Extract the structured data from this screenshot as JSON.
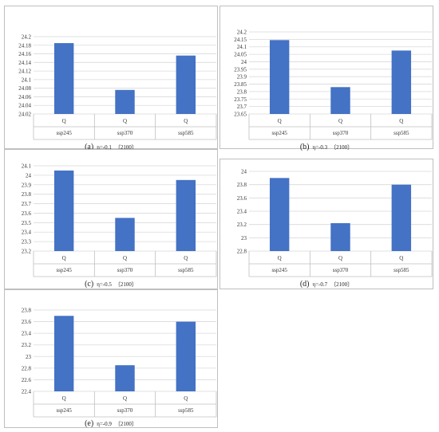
{
  "colors": {
    "bar": "#4472C4",
    "grid": "#d9d9d9",
    "axis_text": "#333333",
    "divider": "#bfbfbf"
  },
  "panels": [
    {
      "label": "(a)",
      "eta": "η=-0.1",
      "year": "〔2100〕"
    },
    {
      "label": "(b)",
      "eta": "η=-0.3",
      "year": "〔2100〕"
    },
    {
      "label": "(c)",
      "eta": "η=-0.5",
      "year": "〔2100〕"
    },
    {
      "label": "(d)",
      "eta": "η=-0.7",
      "year": "〔2100〕"
    },
    {
      "label": "(e)",
      "eta": "η=-0.9",
      "year": "〔2100〕"
    }
  ],
  "chart_data": [
    {
      "type": "bar",
      "categories": [
        "ssp245",
        "ssp370",
        "ssp585"
      ],
      "series": [
        {
          "name": "",
          "values": [
            24.185,
            24.076,
            24.156
          ]
        }
      ],
      "bar_labels": [
        "Q",
        "Q",
        "Q"
      ],
      "yticks": [
        "24.02",
        "24.04",
        "24.06",
        "24.08",
        "24.1",
        "24.12",
        "24.14",
        "24.16",
        "24.18",
        "24.2"
      ],
      "ylim": [
        24.02,
        24.2
      ],
      "grid": true
    },
    {
      "type": "bar",
      "categories": [
        "ssp245",
        "ssp370",
        "ssp585"
      ],
      "series": [
        {
          "name": "",
          "values": [
            24.145,
            23.83,
            24.075
          ]
        }
      ],
      "bar_labels": [
        "Q",
        "Q",
        "Q"
      ],
      "yticks": [
        "23.65",
        "23.7",
        "23.75",
        "23.8",
        "23.85",
        "23.9",
        "23.95",
        "24",
        "24.05",
        "24.1",
        "24.15",
        "24.2"
      ],
      "ylim": [
        23.65,
        24.2
      ],
      "grid": true
    },
    {
      "type": "bar",
      "categories": [
        "ssp245",
        "ssp370",
        "ssp585"
      ],
      "series": [
        {
          "name": "",
          "values": [
            24.05,
            23.55,
            23.95
          ]
        }
      ],
      "bar_labels": [
        "Q",
        "Q",
        "Q"
      ],
      "yticks": [
        "23.2",
        "23.3",
        "23.4",
        "23.5",
        "23.6",
        "23.7",
        "23.8",
        "23.9",
        "24",
        "24.1"
      ],
      "ylim": [
        23.2,
        24.1
      ],
      "grid": true
    },
    {
      "type": "bar",
      "categories": [
        "ssp245",
        "ssp370",
        "ssp585"
      ],
      "series": [
        {
          "name": "",
          "values": [
            23.9,
            23.22,
            23.8
          ]
        }
      ],
      "bar_labels": [
        "Q",
        "Q",
        "Q"
      ],
      "yticks": [
        "22.8",
        "23",
        "23.2",
        "23.4",
        "23.6",
        "23.8",
        "24"
      ],
      "ylim": [
        22.8,
        24.0
      ],
      "grid": true
    },
    {
      "type": "bar",
      "categories": [
        "ssp245",
        "ssp370",
        "ssp585"
      ],
      "series": [
        {
          "name": "",
          "values": [
            23.7,
            22.85,
            23.6
          ]
        }
      ],
      "bar_labels": [
        "Q",
        "Q",
        "Q"
      ],
      "yticks": [
        "22.4",
        "22.6",
        "22.8",
        "23",
        "23.2",
        "23.4",
        "23.6",
        "23.8"
      ],
      "ylim": [
        22.4,
        23.8
      ],
      "grid": true
    }
  ]
}
